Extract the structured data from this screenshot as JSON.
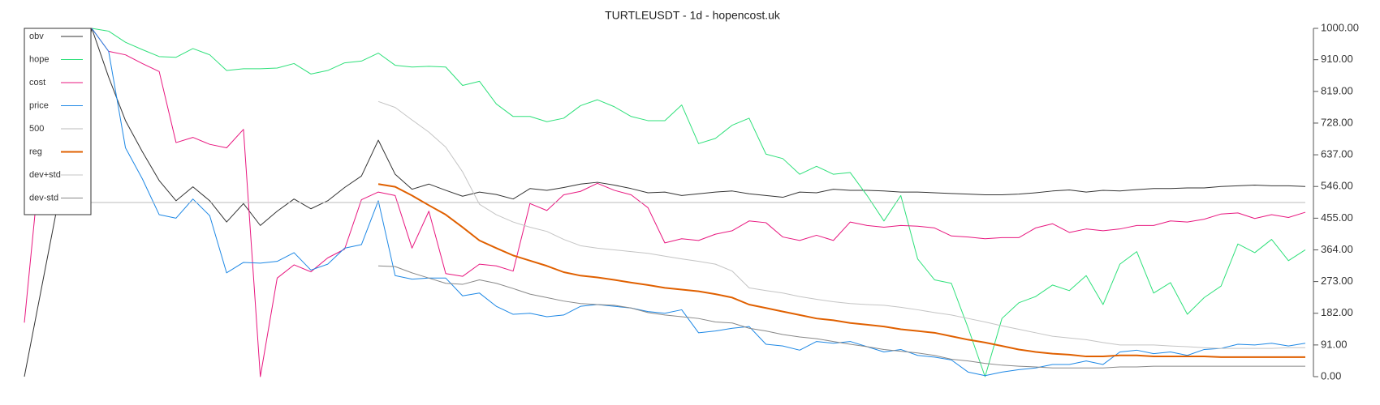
{
  "chart_data": {
    "type": "line",
    "title": "TURTLEUSDT - 1d - hopencost.uk",
    "ylim": [
      0,
      1000
    ],
    "yticks": [
      {
        "value": 0,
        "label": "0.00"
      },
      {
        "value": 91,
        "label": "91.00"
      },
      {
        "value": 182,
        "label": "182.00"
      },
      {
        "value": 273,
        "label": "273.00"
      },
      {
        "value": 364,
        "label": "364.00"
      },
      {
        "value": 455,
        "label": "455.00"
      },
      {
        "value": 546,
        "label": "546.00"
      },
      {
        "value": 637,
        "label": "637.00"
      },
      {
        "value": 728,
        "label": "728.00"
      },
      {
        "value": 819,
        "label": "819.00"
      },
      {
        "value": 910,
        "label": "910.00"
      },
      {
        "value": 1000,
        "label": "1000.00"
      }
    ],
    "y_axis_side": "right",
    "grid": false,
    "legend": "upper left",
    "series": [
      {
        "name": "obv",
        "color": "#333333",
        "values": [
          0,
          250,
          500,
          750,
          1000,
          860,
          735,
          646,
          563,
          505,
          545,
          505,
          444,
          497,
          434,
          475,
          510,
          482,
          505,
          543,
          576,
          679,
          581,
          538,
          553,
          535,
          518,
          530,
          523,
          510,
          540,
          535,
          543,
          553,
          558,
          550,
          540,
          528,
          530,
          520,
          525,
          530,
          533,
          525,
          520,
          515,
          530,
          528,
          538,
          535,
          535,
          533,
          530,
          530,
          528,
          526,
          524,
          522,
          522,
          524,
          528,
          533,
          536,
          530,
          535,
          533,
          537,
          540,
          540,
          542,
          542,
          546,
          548,
          550,
          548,
          548,
          546
        ]
      },
      {
        "name": "hope",
        "color": "#2ee07a",
        "values": [
          null,
          null,
          null,
          null,
          1000,
          992,
          960,
          939,
          919,
          917,
          942,
          924,
          879,
          884,
          884,
          886,
          899,
          869,
          879,
          901,
          906,
          929,
          894,
          889,
          891,
          889,
          836,
          848,
          783,
          747,
          747,
          732,
          742,
          778,
          795,
          775,
          747,
          735,
          735,
          780,
          669,
          684,
          722,
          742,
          639,
          626,
          581,
          604,
          581,
          586,
          520,
          447,
          520,
          338,
          278,
          268,
          139,
          0,
          167,
          212,
          230,
          263,
          247,
          290,
          207,
          323,
          359,
          240,
          270,
          179,
          227,
          260,
          381,
          356,
          394,
          333,
          364
        ]
      },
      {
        "name": "cost",
        "color": "#e8177f",
        "values": [
          155,
          650,
          950,
          1000,
          1000,
          934,
          924,
          899,
          876,
          672,
          687,
          667,
          657,
          710,
          0,
          283,
          321,
          301,
          341,
          366,
          508,
          530,
          520,
          369,
          475,
          296,
          288,
          323,
          318,
          303,
          497,
          477,
          522,
          532,
          555,
          535,
          522,
          485,
          384,
          396,
          391,
          409,
          419,
          447,
          442,
          401,
          391,
          406,
          391,
          444,
          434,
          429,
          434,
          432,
          427,
          404,
          401,
          396,
          399,
          399,
          427,
          439,
          414,
          424,
          419,
          424,
          434,
          434,
          447,
          444,
          452,
          467,
          470,
          454,
          465,
          457,
          472
        ]
      },
      {
        "name": "price",
        "color": "#1e88e5",
        "values": [
          null,
          null,
          null,
          null,
          1000,
          934,
          657,
          568,
          465,
          455,
          510,
          462,
          298,
          328,
          326,
          331,
          356,
          306,
          323,
          369,
          379,
          505,
          290,
          280,
          283,
          283,
          232,
          240,
          202,
          179,
          182,
          172,
          177,
          202,
          207,
          202,
          197,
          187,
          182,
          192,
          126,
          131,
          139,
          144,
          93,
          88,
          76,
          101,
          96,
          101,
          86,
          71,
          78,
          61,
          56,
          48,
          13,
          3,
          13,
          20,
          25,
          35,
          35,
          45,
          35,
          71,
          76,
          66,
          71,
          61,
          78,
          81,
          93,
          91,
          96,
          88,
          96
        ]
      },
      {
        "name": "500",
        "color": "#bbbbbb",
        "values": [
          500,
          500,
          500,
          500,
          500,
          500,
          500,
          500,
          500,
          500,
          500,
          500,
          500,
          500,
          500,
          500,
          500,
          500,
          500,
          500,
          500,
          500,
          500,
          500,
          500,
          500,
          500,
          500,
          500,
          500,
          500,
          500,
          500,
          500,
          500,
          500,
          500,
          500,
          500,
          500,
          500,
          500,
          500,
          500,
          500,
          500,
          500,
          500,
          500,
          500,
          500,
          500,
          500,
          500,
          500,
          500,
          500,
          500,
          500,
          500,
          500,
          500,
          500,
          500,
          500,
          500,
          500,
          500,
          500,
          500,
          500,
          500,
          500,
          500,
          500,
          500,
          500
        ]
      },
      {
        "name": "reg",
        "color": "#e06000",
        "linewidth": 2,
        "values": [
          null,
          null,
          null,
          null,
          null,
          null,
          null,
          null,
          null,
          null,
          null,
          null,
          null,
          null,
          null,
          null,
          null,
          null,
          null,
          null,
          null,
          553,
          545,
          520,
          492,
          465,
          429,
          391,
          369,
          348,
          333,
          318,
          300,
          290,
          285,
          278,
          270,
          263,
          255,
          250,
          245,
          237,
          227,
          207,
          197,
          187,
          177,
          167,
          162,
          154,
          149,
          144,
          136,
          131,
          126,
          116,
          106,
          98,
          88,
          78,
          71,
          66,
          63,
          58,
          58,
          61,
          61,
          58,
          58,
          58,
          58,
          56,
          56,
          56,
          56,
          56,
          56
        ]
      },
      {
        "name": "dev+std",
        "color": "#c4c4c4",
        "values": [
          null,
          null,
          null,
          null,
          null,
          null,
          null,
          null,
          null,
          null,
          null,
          null,
          null,
          null,
          null,
          null,
          null,
          null,
          null,
          null,
          null,
          790,
          773,
          737,
          702,
          659,
          588,
          495,
          465,
          444,
          429,
          417,
          394,
          376,
          369,
          364,
          359,
          354,
          346,
          338,
          331,
          323,
          303,
          255,
          247,
          240,
          230,
          222,
          215,
          210,
          207,
          205,
          199,
          192,
          184,
          177,
          167,
          157,
          146,
          136,
          126,
          116,
          111,
          106,
          98,
          91,
          91,
          91,
          88,
          86,
          83,
          81,
          81,
          81,
          81,
          83,
          83
        ]
      },
      {
        "name": "dev-std",
        "color": "#888888",
        "values": [
          null,
          null,
          null,
          null,
          null,
          null,
          null,
          null,
          null,
          null,
          null,
          null,
          null,
          null,
          null,
          null,
          null,
          null,
          null,
          null,
          null,
          318,
          316,
          298,
          283,
          268,
          265,
          278,
          268,
          253,
          237,
          227,
          217,
          210,
          207,
          205,
          197,
          184,
          177,
          172,
          167,
          157,
          154,
          139,
          131,
          121,
          114,
          109,
          101,
          93,
          86,
          78,
          73,
          68,
          61,
          50,
          45,
          38,
          33,
          30,
          28,
          25,
          25,
          25,
          25,
          28,
          28,
          30,
          30,
          30,
          30,
          30,
          30,
          30,
          30,
          30,
          30
        ]
      }
    ]
  }
}
